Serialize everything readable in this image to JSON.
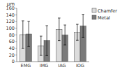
{
  "chart_data": {
    "type": "bar",
    "ylabel": "μm",
    "categories": [
      "EMG",
      "IMG",
      "IAG",
      "IOG"
    ],
    "series": [
      {
        "name": "Chamfer",
        "color": "#dcdcdc",
        "values": [
          81.0,
          47.6,
          97.0,
          88.0
        ],
        "errors": [
          41.6,
          29.0,
          33.9,
          24.0
        ]
      },
      {
        "name": "Metal",
        "color": "#7a7a7a",
        "values": [
          83.0,
          63.0,
          80.0,
          107.0
        ],
        "errors": [
          38.0,
          45.0,
          30.0,
          35.0
        ]
      }
    ],
    "ylim": [
      0,
      160
    ],
    "yticks": [
      0,
      20,
      40,
      60,
      80,
      100,
      120,
      140,
      160
    ],
    "grid": false,
    "legend": "right"
  }
}
